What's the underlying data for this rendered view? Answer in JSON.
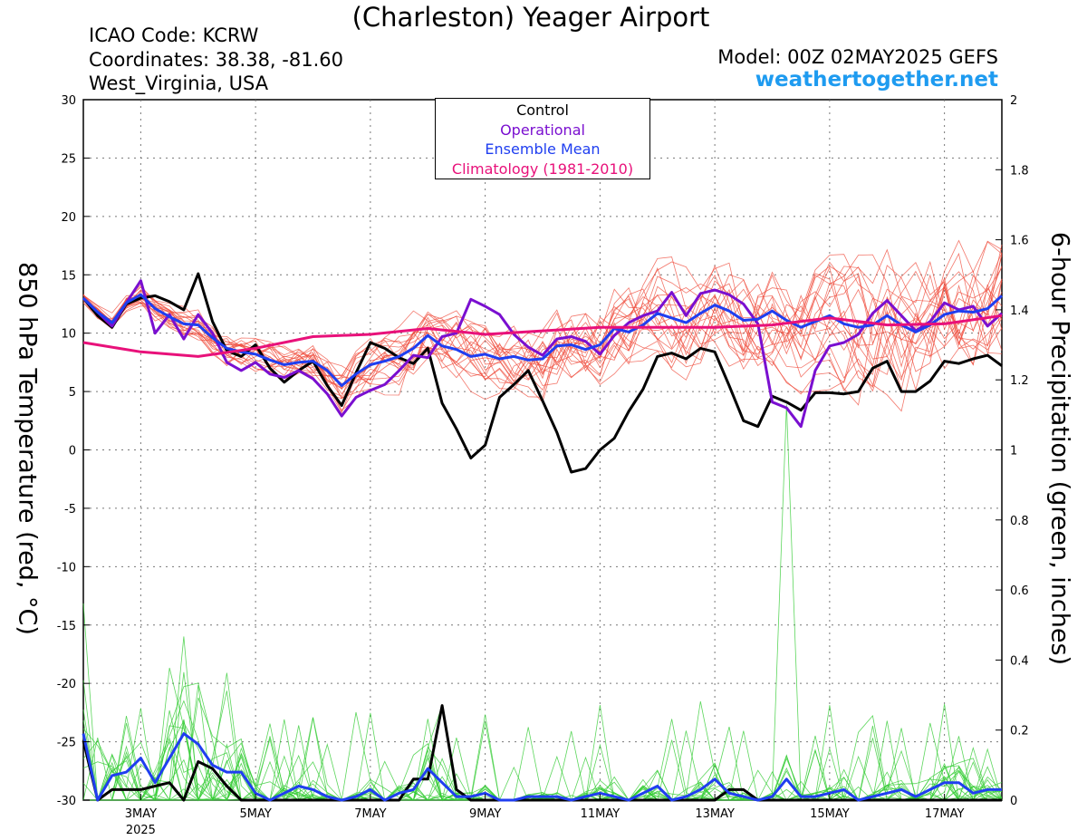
{
  "header": {
    "title": "(Charleston) Yeager Airport",
    "icao": "ICAO Code: KCRW",
    "coordinates": "Coordinates: 38.38, -81.60",
    "location": "West_Virginia, USA",
    "model": "Model: 00Z 02MAY2025 GEFS",
    "site": "weathertogether.net"
  },
  "colors": {
    "control": "#000000",
    "operational": "#7a0fd0",
    "ensemble_mean": "#1f3ef0",
    "climatology": "#e8117a",
    "members_temp": "#ef4a3a",
    "members_precip": "#33cc33",
    "site": "#1e9bf0"
  },
  "chart_data": {
    "type": "line",
    "title": "(Charleston) Yeager Airport",
    "ylabel": "850 hPa Temperature (red, °C)",
    "y2label": "6-hour Precipitation (green, inches)",
    "ylim": [
      -30,
      30
    ],
    "y2lim": [
      0,
      2
    ],
    "yticks": [
      30,
      25,
      20,
      15,
      10,
      5,
      0,
      -5,
      -10,
      -15,
      -20,
      -25,
      -30
    ],
    "y2ticks": [
      2,
      1.8,
      1.6,
      1.4,
      1.2,
      1,
      0.8,
      0.6,
      0.4,
      0.2,
      0
    ],
    "xlim": [
      2.0,
      18.0
    ],
    "xticks": [
      {
        "day": 3,
        "label": "3MAY",
        "sub": "2025"
      },
      {
        "day": 5,
        "label": "5MAY"
      },
      {
        "day": 7,
        "label": "7MAY"
      },
      {
        "day": 9,
        "label": "9MAY"
      },
      {
        "day": 11,
        "label": "11MAY"
      },
      {
        "day": 13,
        "label": "13MAY"
      },
      {
        "day": 15,
        "label": "15MAY"
      },
      {
        "day": 17,
        "label": "17MAY"
      }
    ],
    "x_units": "day of May 2025 (00Z 02MAY2025 + 6-hour steps)",
    "grid": true,
    "legend": {
      "position": "top-center",
      "entries": [
        "Control",
        "Operational",
        "Ensemble Mean",
        "Climatology (1981-2010)"
      ]
    },
    "series": [
      {
        "name": "Control",
        "axis": "left",
        "color": "#000000",
        "x": [
          2.0,
          2.25,
          2.5,
          2.75,
          3.0,
          3.25,
          3.5,
          3.75,
          4.0,
          4.25,
          4.5,
          4.75,
          5.0,
          5.25,
          5.5,
          5.75,
          6.0,
          6.25,
          6.5,
          6.75,
          7.0,
          7.25,
          7.5,
          7.75,
          8.0,
          8.25,
          8.5,
          8.75,
          9.0,
          9.25,
          9.5,
          9.75,
          10.0,
          10.25,
          10.5,
          10.75,
          11.0,
          11.25,
          11.5,
          11.75,
          12.0,
          12.25,
          12.5,
          12.75,
          13.0,
          13.25,
          13.5,
          13.75,
          14.0,
          14.25,
          14.5,
          14.75,
          15.0,
          15.25,
          15.5,
          15.75,
          16.0,
          16.25,
          16.5,
          16.75,
          17.0,
          17.25,
          17.5,
          17.75,
          18.0
        ],
        "y": [
          13,
          11.5,
          10.5,
          12.5,
          13,
          13.2,
          12.7,
          12,
          15.1,
          11,
          8.5,
          8,
          9,
          7,
          5.8,
          6.8,
          7.6,
          5.5,
          3.8,
          6.6,
          9.2,
          8.7,
          7.9,
          7.4,
          8.7,
          4,
          1.8,
          -0.7,
          0.4,
          4.5,
          5.6,
          6.8,
          4.2,
          1.5,
          -1.9,
          -1.6,
          0,
          1,
          3.3,
          5.2,
          8,
          8.3,
          7.8,
          8.7,
          8.4,
          5.5,
          2.5,
          2,
          4.6,
          4.1,
          3.4,
          4.9,
          4.9,
          4.8,
          5,
          7,
          7.6,
          5,
          5,
          5.9,
          7.6,
          7.4,
          7.8,
          8.1,
          7.2
        ]
      },
      {
        "name": "Operational",
        "axis": "left",
        "color": "#7a0fd0",
        "x": [
          2.0,
          2.25,
          2.5,
          2.75,
          3.0,
          3.25,
          3.5,
          3.75,
          4.0,
          4.25,
          4.5,
          4.75,
          5.0,
          5.25,
          5.5,
          5.75,
          6.0,
          6.25,
          6.5,
          6.75,
          7.0,
          7.25,
          7.5,
          7.75,
          8.0,
          8.25,
          8.5,
          8.75,
          9.0,
          9.25,
          9.5,
          9.75,
          10.0,
          10.25,
          10.5,
          10.75,
          11.0,
          11.25,
          11.5,
          11.75,
          12.0,
          12.25,
          12.5,
          12.75,
          13.0,
          13.25,
          13.5,
          13.75,
          14.0,
          14.25,
          14.5,
          14.75,
          15.0,
          15.25,
          15.5,
          15.75,
          16.0,
          16.25,
          16.5,
          16.75,
          17.0,
          17.25,
          17.5,
          17.75,
          18.0
        ],
        "y": [
          13,
          11.8,
          10.6,
          12.6,
          14.5,
          10,
          11.6,
          9.5,
          11.6,
          10,
          7.5,
          6.8,
          7.5,
          6.5,
          6.2,
          6.8,
          6.1,
          4.8,
          2.9,
          4.5,
          5.1,
          5.6,
          6.8,
          8.1,
          7.9,
          9.7,
          10,
          12.9,
          12.3,
          11.6,
          9.9,
          8.8,
          8.1,
          9.5,
          9.7,
          9.3,
          8.2,
          9.8,
          10.9,
          11.5,
          11.9,
          13.5,
          11.5,
          13.4,
          13.7,
          13.3,
          12.5,
          10.8,
          4.1,
          3.6,
          2,
          6.8,
          8.9,
          9.2,
          9.9,
          11.7,
          12.8,
          11.5,
          10.2,
          11,
          12.6,
          12,
          12.3,
          10.6,
          11.7
        ]
      },
      {
        "name": "Ensemble Mean",
        "axis": "left",
        "color": "#1f3ef0",
        "x": [
          2.0,
          2.25,
          2.5,
          2.75,
          3.0,
          3.25,
          3.5,
          3.75,
          4.0,
          4.25,
          4.5,
          4.75,
          5.0,
          5.25,
          5.5,
          5.75,
          6.0,
          6.25,
          6.5,
          6.75,
          7.0,
          7.25,
          7.5,
          7.75,
          8.0,
          8.25,
          8.5,
          8.75,
          9.0,
          9.25,
          9.5,
          9.75,
          10.0,
          10.25,
          10.5,
          10.75,
          11.0,
          11.25,
          11.5,
          11.75,
          12.0,
          12.25,
          12.5,
          12.75,
          13.0,
          13.25,
          13.5,
          13.75,
          14.0,
          14.25,
          14.5,
          14.75,
          15.0,
          15.25,
          15.5,
          15.75,
          16.0,
          16.25,
          16.5,
          16.75,
          17.0,
          17.25,
          17.5,
          17.75,
          18.0
        ],
        "y": [
          13,
          11.8,
          10.9,
          12.6,
          13.3,
          12.1,
          11.4,
          10.8,
          10.7,
          9.6,
          8.7,
          8.4,
          8.2,
          7.7,
          7.3,
          7.5,
          7.6,
          6.8,
          5.5,
          6.5,
          7.3,
          7.6,
          8,
          8.7,
          9.8,
          8.9,
          8.6,
          8,
          8.2,
          7.8,
          8,
          7.7,
          7.8,
          8.9,
          9,
          8.6,
          9,
          10.4,
          10.1,
          10.7,
          11.7,
          11.3,
          10.9,
          11.7,
          12.4,
          11.9,
          11.1,
          11.2,
          11.9,
          11.1,
          10.5,
          11,
          11.5,
          10.8,
          10.5,
          10.7,
          11.5,
          10.7,
          10.1,
          10.7,
          11.6,
          11.9,
          11.8,
          12.1,
          13.2
        ]
      },
      {
        "name": "Climatology (1981-2010)",
        "axis": "left",
        "color": "#e8117a",
        "x": [
          2.0,
          3.0,
          4.0,
          5.0,
          6.0,
          7.0,
          8.0,
          9.0,
          10.0,
          11.0,
          12.0,
          13.0,
          14.0,
          15.0,
          16.0,
          17.0,
          18.0
        ],
        "y": [
          9.2,
          8.4,
          8.0,
          8.7,
          9.7,
          9.9,
          10.4,
          9.9,
          10.2,
          10.5,
          10.5,
          10.5,
          10.7,
          11.3,
          10.7,
          10.8,
          11.5
        ]
      },
      {
        "name": "Control",
        "axis": "right",
        "color": "#000000",
        "x": [
          2.0,
          2.25,
          2.5,
          2.75,
          3.0,
          3.25,
          3.5,
          3.75,
          4.0,
          4.25,
          4.5,
          4.75,
          5.0,
          5.25,
          5.5,
          5.75,
          6.0,
          6.25,
          6.5,
          6.75,
          7.0,
          7.25,
          7.5,
          7.75,
          8.0,
          8.25,
          8.5,
          8.75,
          9.0,
          9.25,
          9.5,
          9.75,
          10.0,
          10.25,
          10.5,
          10.75,
          11.0,
          11.25,
          11.5,
          11.75,
          12.0,
          12.25,
          12.5,
          12.75,
          13.0,
          13.25,
          13.5,
          13.75,
          14.0,
          14.25,
          14.5,
          14.75,
          15.0,
          15.25,
          15.5,
          15.75,
          16.0,
          16.25,
          16.5,
          16.75,
          17.0,
          17.25,
          17.5,
          17.75,
          18.0
        ],
        "y": [
          0.17,
          0,
          0.03,
          0.03,
          0.03,
          0.04,
          0.05,
          0,
          0.11,
          0.09,
          0.04,
          0,
          0,
          0,
          0,
          0,
          0,
          0,
          0,
          0,
          0,
          0,
          0,
          0.06,
          0.06,
          0.27,
          0.03,
          0,
          0,
          0,
          0,
          0,
          0,
          0,
          0,
          0,
          0,
          0,
          0,
          0,
          0,
          0,
          0,
          0,
          0,
          0.03,
          0.03,
          0,
          0,
          0,
          0,
          0,
          0,
          0,
          0,
          0,
          0,
          0,
          0,
          0,
          0,
          0,
          0,
          0,
          0
        ]
      },
      {
        "name": "Ensemble Mean",
        "axis": "right",
        "color": "#1f3ef0",
        "x": [
          2.0,
          2.25,
          2.5,
          2.75,
          3.0,
          3.25,
          3.5,
          3.75,
          4.0,
          4.25,
          4.5,
          4.75,
          5.0,
          5.25,
          5.5,
          5.75,
          6.0,
          6.25,
          6.5,
          6.75,
          7.0,
          7.25,
          7.5,
          7.75,
          8.0,
          8.25,
          8.5,
          8.75,
          9.0,
          9.25,
          9.5,
          9.75,
          10.0,
          10.25,
          10.5,
          10.75,
          11.0,
          11.25,
          11.5,
          11.75,
          12.0,
          12.25,
          12.5,
          12.75,
          13.0,
          13.25,
          13.5,
          13.75,
          14.0,
          14.25,
          14.5,
          14.75,
          15.0,
          15.25,
          15.5,
          15.75,
          16.0,
          16.25,
          16.5,
          16.75,
          17.0,
          17.25,
          17.5,
          17.75,
          18.0
        ],
        "y": [
          0.19,
          0,
          0.07,
          0.08,
          0.12,
          0.05,
          0.12,
          0.19,
          0.16,
          0.1,
          0.08,
          0.08,
          0.02,
          0,
          0.02,
          0.04,
          0.03,
          0.01,
          0,
          0.01,
          0.03,
          0,
          0.02,
          0.03,
          0.09,
          0.05,
          0.01,
          0.01,
          0.02,
          0,
          0,
          0.01,
          0.01,
          0.01,
          0,
          0.01,
          0.02,
          0.01,
          0,
          0.02,
          0.04,
          0,
          0.01,
          0.03,
          0.06,
          0.02,
          0.01,
          0,
          0.01,
          0.06,
          0.01,
          0.01,
          0.02,
          0.03,
          0,
          0.01,
          0.02,
          0.03,
          0.01,
          0.03,
          0.05,
          0.05,
          0.02,
          0.03,
          0.03
        ]
      }
    ]
  }
}
